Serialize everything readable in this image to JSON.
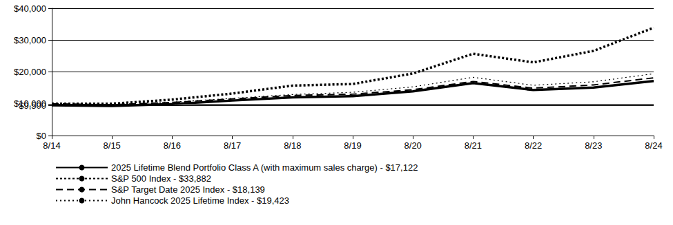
{
  "chart_data": {
    "type": "line",
    "categories": [
      "8/14",
      "8/15",
      "8/16",
      "8/17",
      "8/18",
      "8/19",
      "8/20",
      "8/21",
      "8/22",
      "8/23",
      "8/24"
    ],
    "series": [
      {
        "name": "2025 Lifetime Blend Portfolio Class A (with maximum sales charge) - $17,122",
        "color": "#000000",
        "line_style": "solid",
        "values": [
          9500,
          9300,
          9900,
          11000,
          12000,
          12400,
          13900,
          16500,
          14300,
          15100,
          17122
        ]
      },
      {
        "name": "S&P 500 Index - $33,882",
        "color": "#000000",
        "line_style": "dotted",
        "values": [
          10000,
          10000,
          11300,
          13200,
          15700,
          16200,
          19500,
          25700,
          23000,
          26600,
          33882
        ]
      },
      {
        "name": "S&P Target Date 2025 Index - $18,139",
        "color": "#000000",
        "line_style": "dashed",
        "values": [
          10000,
          9700,
          10400,
          11500,
          12600,
          13000,
          14400,
          17000,
          14900,
          15900,
          18139
        ]
      },
      {
        "name": "John Hancock 2025 Lifetime Index - $19,423",
        "color": "#000000",
        "line_style": "dotted",
        "values": [
          10000,
          9800,
          10500,
          11700,
          12900,
          13600,
          15300,
          18300,
          15800,
          16900,
          19423
        ]
      }
    ],
    "ylim": [
      0,
      40000
    ],
    "yticks": [
      {
        "value": 0,
        "label": "$0"
      },
      {
        "value": 9500,
        "label": "$9,500"
      },
      {
        "value": 10000,
        "label": "$10,000"
      },
      {
        "value": 20000,
        "label": "$20,000"
      },
      {
        "value": 30000,
        "label": "$30,000"
      },
      {
        "value": 40000,
        "label": "$40,000"
      }
    ],
    "grid": true,
    "legend": "bottom"
  }
}
